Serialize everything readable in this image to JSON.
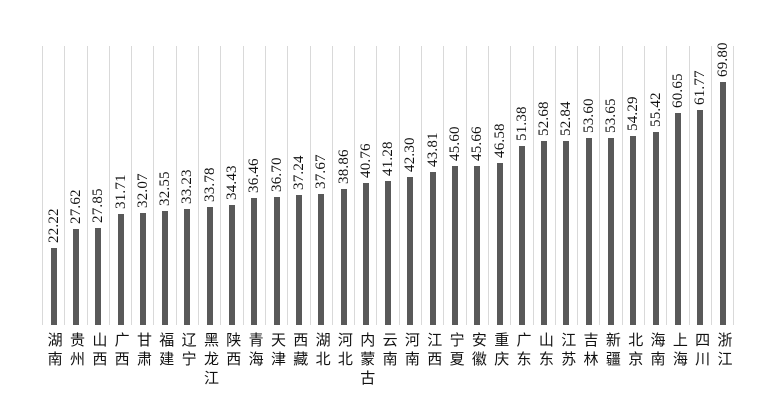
{
  "chart_data": {
    "type": "bar",
    "title": "",
    "xlabel": "",
    "ylabel": "",
    "ylim": [
      0,
      80
    ],
    "grid": "vertical-lines-at-category-boundaries",
    "legend": "none",
    "axes_visible": false,
    "value_label_style": "rotated-90-degrees-above-bar-outside-end",
    "category_label_style": "vertical-stacked-characters-below-axis",
    "categories": [
      "湖南",
      "贵州",
      "山西",
      "广西",
      "甘肃",
      "福建",
      "辽宁",
      "黑龙江",
      "陕西",
      "青海",
      "天津",
      "西藏",
      "湖北",
      "河北",
      "内蒙古",
      "云南",
      "河南",
      "江西",
      "宁夏",
      "安徽",
      "重庆",
      "广东",
      "山东",
      "江苏",
      "吉林",
      "新疆",
      "北京",
      "海南",
      "上海",
      "四川",
      "浙江"
    ],
    "values": [
      22.22,
      27.62,
      27.85,
      31.71,
      32.07,
      32.55,
      33.23,
      33.78,
      34.43,
      36.46,
      36.7,
      37.24,
      37.67,
      38.86,
      40.76,
      41.28,
      42.3,
      43.81,
      45.6,
      45.66,
      46.58,
      51.38,
      52.68,
      52.84,
      53.6,
      53.65,
      54.29,
      55.42,
      60.65,
      61.77,
      69.8
    ],
    "value_labels": [
      "22.22",
      "27.62",
      "27.85",
      "31.71",
      "32.07",
      "32.55",
      "33.23",
      "33.78",
      "34.43",
      "36.46",
      "36.70",
      "37.24",
      "37.67",
      "38.86",
      "40.76",
      "41.28",
      "42.30",
      "43.81",
      "45.60",
      "45.66",
      "46.58",
      "51.38",
      "52.68",
      "52.84",
      "53.60",
      "53.65",
      "54.29",
      "55.42",
      "60.65",
      "61.77",
      "69.80"
    ],
    "colors": {
      "bar": "#595959",
      "gridline": "#d9d9d9",
      "text": "#111111",
      "background": "#ffffff"
    }
  }
}
